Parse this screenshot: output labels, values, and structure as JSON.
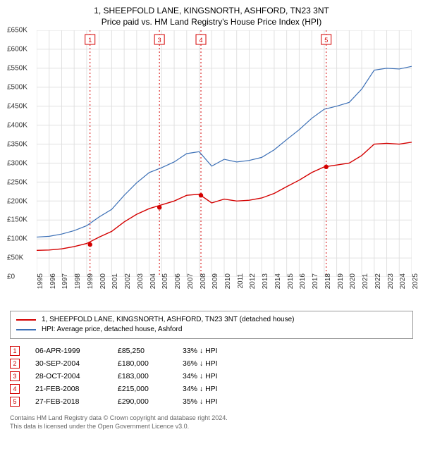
{
  "title_line1": "1, SHEEPFOLD LANE, KINGSNORTH, ASHFORD, TN23 3NT",
  "title_line2": "Price paid vs. HM Land Registry's House Price Index (HPI)",
  "chart": {
    "type": "line",
    "background_color": "#ffffff",
    "grid_color": "#e0e0e0",
    "ylim": [
      0,
      650000
    ],
    "ytick_step": 50000,
    "y_prefix": "£",
    "y_labels": [
      "£0",
      "£50K",
      "£100K",
      "£150K",
      "£200K",
      "£250K",
      "£300K",
      "£350K",
      "£400K",
      "£450K",
      "£500K",
      "£550K",
      "£600K",
      "£650K"
    ],
    "x_years": [
      1995,
      1996,
      1997,
      1998,
      1999,
      2000,
      2001,
      2002,
      2003,
      2004,
      2005,
      2006,
      2007,
      2008,
      2009,
      2010,
      2011,
      2012,
      2013,
      2014,
      2015,
      2016,
      2017,
      2018,
      2019,
      2020,
      2021,
      2022,
      2023,
      2024,
      2025
    ],
    "label_fontsize": 10,
    "series": [
      {
        "name": "1, SHEEPFOLD LANE, KINGSNORTH, ASHFORD, TN23 3NT (detached house)",
        "color": "#d40000",
        "line_width": 1.4,
        "values_by_year": {
          "1995": 70000,
          "1996": 71000,
          "1997": 74000,
          "1998": 80000,
          "1999": 88000,
          "2000": 105000,
          "2001": 120000,
          "2002": 145000,
          "2003": 165000,
          "2004": 180000,
          "2005": 190000,
          "2006": 200000,
          "2007": 215000,
          "2008": 218000,
          "2009": 195000,
          "2010": 205000,
          "2011": 200000,
          "2012": 202000,
          "2013": 208000,
          "2014": 220000,
          "2015": 238000,
          "2016": 255000,
          "2017": 275000,
          "2018": 290000,
          "2019": 295000,
          "2020": 300000,
          "2021": 320000,
          "2022": 350000,
          "2023": 352000,
          "2024": 350000,
          "2025": 355000
        }
      },
      {
        "name": "HPI: Average price, detached house, Ashford",
        "color": "#3b6fb6",
        "line_width": 1.2,
        "values_by_year": {
          "1995": 105000,
          "1996": 107000,
          "1997": 113000,
          "1998": 122000,
          "1999": 135000,
          "2000": 158000,
          "2001": 178000,
          "2002": 215000,
          "2003": 248000,
          "2004": 275000,
          "2005": 288000,
          "2006": 303000,
          "2007": 325000,
          "2008": 330000,
          "2009": 292000,
          "2010": 310000,
          "2011": 303000,
          "2012": 307000,
          "2013": 315000,
          "2014": 335000,
          "2015": 362000,
          "2016": 388000,
          "2017": 418000,
          "2018": 442000,
          "2019": 450000,
          "2020": 460000,
          "2021": 495000,
          "2022": 545000,
          "2023": 550000,
          "2024": 548000,
          "2025": 555000
        }
      }
    ],
    "sale_markers": [
      {
        "n": "1",
        "year": 1999.27,
        "price": 85250,
        "color": "#d40000"
      },
      {
        "n": "3",
        "year": 2004.82,
        "price": 183000,
        "color": "#d40000"
      },
      {
        "n": "4",
        "year": 2008.14,
        "price": 215000,
        "color": "#d40000"
      },
      {
        "n": "5",
        "year": 2018.16,
        "price": 290000,
        "color": "#d40000"
      }
    ],
    "marker_vline_color": "#d40000",
    "marker_vline_dash": "2,3"
  },
  "legend": {
    "items": [
      {
        "label": "1, SHEEPFOLD LANE, KINGSNORTH, ASHFORD, TN23 3NT (detached house)",
        "color": "#d40000"
      },
      {
        "label": "HPI: Average price, detached house, Ashford",
        "color": "#3b6fb6"
      }
    ]
  },
  "sales": [
    {
      "n": "1",
      "date": "06-APR-1999",
      "price": "£85,250",
      "diff": "33% ↓ HPI",
      "border": "#d40000"
    },
    {
      "n": "2",
      "date": "30-SEP-2004",
      "price": "£180,000",
      "diff": "36% ↓ HPI",
      "border": "#d40000"
    },
    {
      "n": "3",
      "date": "28-OCT-2004",
      "price": "£183,000",
      "diff": "34% ↓ HPI",
      "border": "#d40000"
    },
    {
      "n": "4",
      "date": "21-FEB-2008",
      "price": "£215,000",
      "diff": "34% ↓ HPI",
      "border": "#d40000"
    },
    {
      "n": "5",
      "date": "27-FEB-2018",
      "price": "£290,000",
      "diff": "35% ↓ HPI",
      "border": "#d40000"
    }
  ],
  "footer_line1": "Contains HM Land Registry data © Crown copyright and database right 2024.",
  "footer_line2": "This data is licensed under the Open Government Licence v3.0."
}
